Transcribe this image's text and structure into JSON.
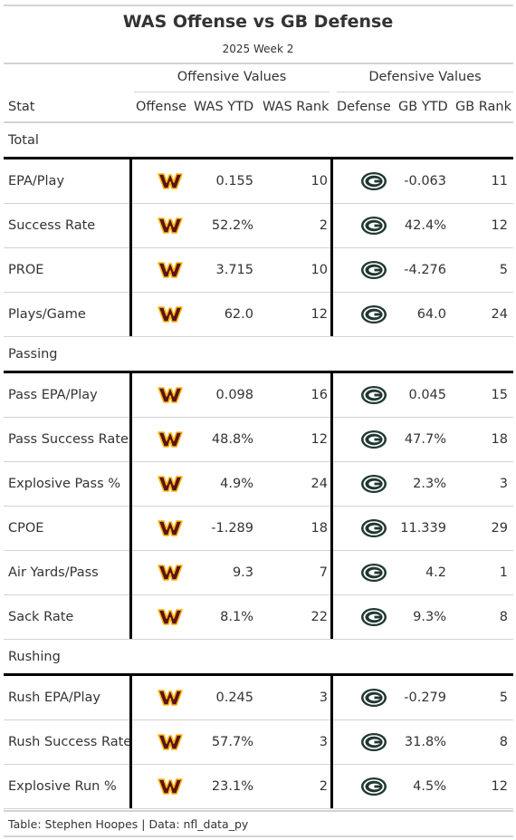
{
  "title": "WAS Offense vs GB Defense",
  "subtitle": "2025 Week 2",
  "spanners": {
    "offense": "Offensive Values",
    "defense": "Defensive Values"
  },
  "columns": {
    "stat": "Stat",
    "offense": "Offense",
    "off_ytd": "WAS YTD",
    "off_rank": "WAS Rank",
    "defense": "Defense",
    "def_ytd": "GB YTD",
    "def_rank": "GB Rank"
  },
  "colors": {
    "good": "#b3ebcd",
    "bad": "#ffbcbc",
    "was_burgundy": "#5a1414",
    "was_gold": "#ffb612",
    "gb_green": "#203731",
    "gb_gold": "#ffb612"
  },
  "logos": {
    "offense": "washington-commanders-w-logo",
    "defense": "green-bay-packers-g-logo"
  },
  "groups": [
    {
      "label": "Total",
      "rows": [
        {
          "stat": "EPA/Play",
          "off_ytd": "0.155",
          "off_rank": "10",
          "off_hl": "",
          "def_ytd": "-0.063",
          "def_rank": "11",
          "def_hl": ""
        },
        {
          "stat": "Success Rate",
          "off_ytd": "52.2%",
          "off_rank": "2",
          "off_hl": "good",
          "def_ytd": "42.4%",
          "def_rank": "12",
          "def_hl": ""
        },
        {
          "stat": "PROE",
          "off_ytd": "3.715",
          "off_rank": "10",
          "off_hl": "",
          "def_ytd": "-4.276",
          "def_rank": "5",
          "def_hl": "good"
        },
        {
          "stat": "Plays/Game",
          "off_ytd": "62.0",
          "off_rank": "12",
          "off_hl": "",
          "def_ytd": "64.0",
          "def_rank": "24",
          "def_hl": ""
        }
      ]
    },
    {
      "label": "Passing",
      "rows": [
        {
          "stat": "Pass EPA/Play",
          "off_ytd": "0.098",
          "off_rank": "16",
          "off_hl": "",
          "def_ytd": "0.045",
          "def_rank": "15",
          "def_hl": ""
        },
        {
          "stat": "Pass Success Rate",
          "off_ytd": "48.8%",
          "off_rank": "12",
          "off_hl": "",
          "def_ytd": "47.7%",
          "def_rank": "18",
          "def_hl": ""
        },
        {
          "stat": "Explosive Pass %",
          "off_ytd": "4.9%",
          "off_rank": "24",
          "off_hl": "",
          "def_ytd": "2.3%",
          "def_rank": "3",
          "def_hl": "good"
        },
        {
          "stat": "CPOE",
          "off_ytd": "-1.289",
          "off_rank": "18",
          "off_hl": "",
          "def_ytd": "11.339",
          "def_rank": "29",
          "def_hl": "bad"
        },
        {
          "stat": "Air Yards/Pass",
          "off_ytd": "9.3",
          "off_rank": "7",
          "off_hl": "good",
          "def_ytd": "4.2",
          "def_rank": "1",
          "def_hl": "good"
        },
        {
          "stat": "Sack Rate",
          "off_ytd": "8.1%",
          "off_rank": "22",
          "off_hl": "",
          "def_ytd": "9.3%",
          "def_rank": "8",
          "def_hl": "good"
        }
      ]
    },
    {
      "label": "Rushing",
      "rows": [
        {
          "stat": "Rush EPA/Play",
          "off_ytd": "0.245",
          "off_rank": "3",
          "off_hl": "good",
          "def_ytd": "-0.279",
          "def_rank": "5",
          "def_hl": "good"
        },
        {
          "stat": "Rush Success Rate",
          "off_ytd": "57.7%",
          "off_rank": "3",
          "off_hl": "good",
          "def_ytd": "31.8%",
          "def_rank": "8",
          "def_hl": ""
        },
        {
          "stat": "Explosive Run %",
          "off_ytd": "23.1%",
          "off_rank": "2",
          "off_hl": "good",
          "def_ytd": "4.5%",
          "def_rank": "12",
          "def_hl": ""
        }
      ]
    }
  ],
  "source_note": "Table: Stephen Hoopes | Data: nfl_data_py"
}
